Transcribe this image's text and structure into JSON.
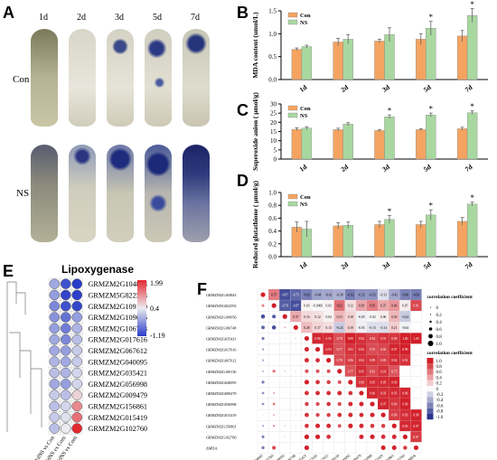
{
  "panel_letters": {
    "A": "A",
    "B": "B",
    "C": "C",
    "D": "D",
    "E": "E",
    "F": "F"
  },
  "panelA": {
    "days": [
      "1d",
      "2d",
      "3d",
      "5d",
      "7d"
    ],
    "rows": [
      "Con",
      "NS"
    ]
  },
  "chart_data": [
    {
      "panel": "B",
      "type": "bar",
      "categories": [
        "1d",
        "2d",
        "3d",
        "5d",
        "7d"
      ],
      "ylabel": "MDA content (umol/L)",
      "ylim": [
        0,
        1.5
      ],
      "yticks": [
        "0.0",
        "0.5",
        "1.0",
        "1.5"
      ],
      "series": [
        {
          "name": "Con",
          "color": "#F4A460",
          "values": [
            0.66,
            0.82,
            0.84,
            0.88,
            0.95
          ],
          "errors": [
            0.03,
            0.08,
            0.04,
            0.12,
            0.12
          ]
        },
        {
          "name": "NS",
          "color": "#A8D8A0",
          "values": [
            0.72,
            0.88,
            0.98,
            1.12,
            1.4
          ],
          "errors": [
            0.03,
            0.1,
            0.15,
            0.15,
            0.15
          ]
        }
      ],
      "significance": [
        "",
        "",
        "",
        "*",
        "*"
      ],
      "legend_position": "top-left"
    },
    {
      "panel": "C",
      "type": "bar",
      "categories": [
        "1d",
        "2d",
        "3d",
        "5d",
        "7d"
      ],
      "ylabel": "Superoxide anion ( μmol/g)",
      "ylim": [
        0,
        30
      ],
      "yticks": [
        "0",
        "5",
        "10",
        "15",
        "20",
        "25",
        "30"
      ],
      "series": [
        {
          "name": "Con",
          "color": "#F4A460",
          "values": [
            16.2,
            16.0,
            15.5,
            16.0,
            16.5
          ],
          "errors": [
            0.8,
            0.8,
            0.6,
            0.5,
            0.8
          ]
        },
        {
          "name": "NS",
          "color": "#A8D8A0",
          "values": [
            16.8,
            19.0,
            23.0,
            24.0,
            25.2
          ],
          "errors": [
            0.8,
            0.8,
            1.0,
            1.0,
            1.0
          ]
        }
      ],
      "significance": [
        "",
        "",
        "*",
        "*",
        "*"
      ],
      "legend_position": "top-left"
    },
    {
      "panel": "D",
      "type": "bar",
      "categories": [
        "1d",
        "2d",
        "3d",
        "5d",
        "7d"
      ],
      "ylabel": "Reduced glutathione ( μmol/g)",
      "ylim": [
        0,
        1.0
      ],
      "yticks": [
        "0.0",
        "0.2",
        "0.4",
        "0.6",
        "0.8",
        "1.0"
      ],
      "series": [
        {
          "name": "Con",
          "color": "#F4A460",
          "values": [
            0.46,
            0.48,
            0.5,
            0.5,
            0.55
          ],
          "errors": [
            0.08,
            0.05,
            0.05,
            0.05,
            0.06
          ]
        },
        {
          "name": "NS",
          "color": "#A8D8A0",
          "values": [
            0.43,
            0.49,
            0.58,
            0.65,
            0.82
          ],
          "errors": [
            0.12,
            0.05,
            0.06,
            0.08,
            0.03
          ]
        }
      ],
      "significance": [
        "",
        "",
        "*",
        "*",
        "*"
      ],
      "legend_position": "top-left"
    },
    {
      "panel": "E",
      "type": "heatmap",
      "title": "Lipoxygenase",
      "columns": [
        "1dNS vs Con",
        "3dNS vs Com",
        "5dNS vs Com"
      ],
      "rows": [
        "GRMZM2G104843",
        "GRMZM5G822593",
        "GRMZM2G109130",
        "GRMZM2G109056",
        "GRMZM2G106748",
        "GRMZM2G017616",
        "GRMZM2G067612",
        "GRMZM2G040095",
        "GRMZM2G035421",
        "GRMZM2G056998",
        "GRMZM2G009479",
        "GRMZM2G156861",
        "GRMZM2G015419",
        "GRMZM2G102760"
      ],
      "values": [
        [
          -0.2,
          -1.0,
          -1.19
        ],
        [
          -0.3,
          -1.1,
          -1.15
        ],
        [
          -0.5,
          -1.0,
          -1.1
        ],
        [
          -0.4,
          -0.7,
          -0.3
        ],
        [
          -0.3,
          -0.6,
          -0.1
        ],
        [
          -0.2,
          -0.5,
          0.0
        ],
        [
          -0.2,
          -0.3,
          0.1
        ],
        [
          -0.1,
          -0.2,
          0.1
        ],
        [
          0.0,
          -0.1,
          0.2
        ],
        [
          -0.2,
          -0.3,
          0.2
        ],
        [
          0.1,
          0.0,
          0.6
        ],
        [
          0.0,
          0.2,
          1.2
        ],
        [
          0.1,
          0.3,
          1.4
        ],
        [
          0.0,
          0.4,
          1.99
        ]
      ],
      "scale": {
        "max": "1.99",
        "mid": "0.4",
        "min": "-1.19"
      }
    },
    {
      "panel": "F",
      "type": "heatmap",
      "labels": [
        "GRMZM2G104843",
        "GRMZM5G822593",
        "GRMZM2G109056",
        "GRMZM2G106748",
        "GRMZM2G035421",
        "GRMZM2G017616",
        "GRMZM2G067612",
        "GRMZM2G109130",
        "GRMZM2G040095",
        "GRMZM2G009479",
        "GRMZM2G056998",
        "GRMZM2G015419",
        "GRMZM2G156861",
        "GRMZM2G102760",
        "ΔMDA"
      ],
      "upper_rows": [
        [
          "0.57",
          "-0.87",
          "-0.75",
          "-0.62",
          "-0.44",
          "-0.42",
          "-0.38",
          "-0.62",
          "-0.52",
          "-0.52",
          "-0.13",
          "-0.42",
          "-0.60",
          "-0.63"
        ],
        [
          "-0.79",
          "-0.87",
          "0.03",
          "-0.0066",
          "0.03",
          "0.62",
          "0.12",
          "0.39",
          "0.56",
          "0.37",
          "0.46",
          "0.07",
          "0.81"
        ],
        [
          "0.37",
          "0.16",
          "0.12",
          "0.04",
          "0.31",
          "0.18",
          "-0.05",
          "-0.02",
          "0.06",
          "0.30",
          "-0.24"
        ],
        [
          "0.28",
          "0.17",
          "0.13",
          "-0.24",
          "0.19",
          "-0.05",
          "-0.13",
          "-0.14",
          "0.21",
          "-0.04"
        ],
        [
          "0.96",
          "0.95",
          "0.78",
          "0.99",
          "0.92",
          "0.84",
          "0.91",
          "0.90",
          "1.00",
          "1.00"
        ],
        [
          "0.93",
          "0.77",
          "0.91",
          "0.93",
          "0.79",
          "0.82",
          "0.97",
          "0.99"
        ],
        [
          "0.78",
          "0.86",
          "0.92",
          "0.89",
          "0.85",
          "0.94",
          "0.91"
        ],
        [
          "0.77",
          "0.95",
          "0.81",
          "0.91",
          "0.75"
        ],
        [
          "0.90",
          "0.95",
          "0.95",
          "0.99"
        ],
        [
          "0.96",
          "0.93",
          "0.95",
          "0.96"
        ],
        [
          "0.97",
          "0.89",
          "0.99"
        ],
        [
          "0.86",
          "0.93",
          "0.98"
        ],
        [
          "0.95",
          "0.97"
        ],
        [
          "0.87"
        ]
      ],
      "legend_sizes": [
        "0",
        "0.2",
        "0.4",
        "0.6",
        "0.8",
        "1.0"
      ],
      "legend_colors": [
        "1.0",
        "0.8",
        "0.6",
        "0.4",
        "0.2",
        "0",
        "-0.2",
        "-0.4",
        "-0.6",
        "-0.8",
        "-1.0"
      ],
      "legend_title": "correlation coefficient"
    }
  ]
}
